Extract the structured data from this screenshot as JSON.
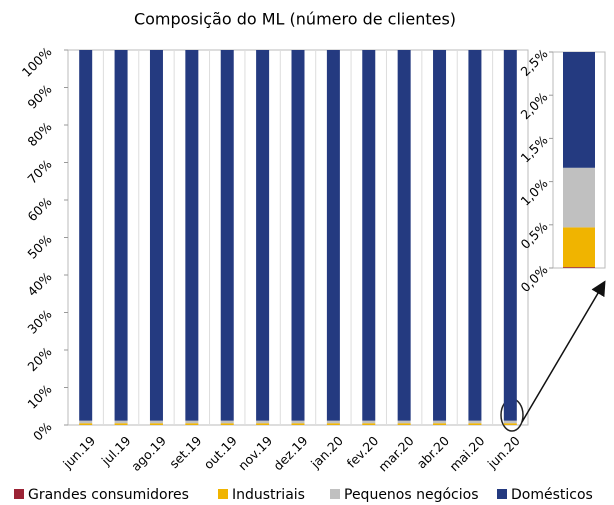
{
  "chart_data": {
    "type": "stacked-bar",
    "title": "Composição do ML (número de clientes)",
    "categories": [
      "jun.19",
      "jul.19",
      "ago.19",
      "set.19",
      "out.19",
      "nov.19",
      "dez.19",
      "jan.20",
      "fev.20",
      "mar.20",
      "abr.20",
      "mai.20",
      "jun.20"
    ],
    "series": [
      {
        "name": "Grandes consumidores",
        "color": "#9b2335",
        "values": [
          0.01,
          0.01,
          0.01,
          0.01,
          0.01,
          0.01,
          0.01,
          0.01,
          0.01,
          0.01,
          0.01,
          0.01,
          0.01
        ]
      },
      {
        "name": "Industriais",
        "color": "#f0b400",
        "values": [
          0.46,
          0.46,
          0.46,
          0.46,
          0.46,
          0.46,
          0.46,
          0.46,
          0.46,
          0.46,
          0.46,
          0.46,
          0.46
        ]
      },
      {
        "name": "Pequenos negócios",
        "color": "#c0c0c0",
        "values": [
          0.69,
          0.69,
          0.69,
          0.69,
          0.69,
          0.69,
          0.69,
          0.69,
          0.69,
          0.69,
          0.69,
          0.69,
          0.69
        ]
      },
      {
        "name": "Domésticos",
        "color": "#243a80",
        "values": [
          98.84,
          98.84,
          98.84,
          98.84,
          98.84,
          98.84,
          98.84,
          98.84,
          98.84,
          98.84,
          98.84,
          98.84,
          98.84
        ]
      }
    ],
    "ylim": [
      0,
      100
    ],
    "yticks": [
      {
        "value": 0,
        "label": "0%"
      },
      {
        "value": 10,
        "label": "10%"
      },
      {
        "value": 20,
        "label": "20%"
      },
      {
        "value": 30,
        "label": "30%"
      },
      {
        "value": 40,
        "label": "40%"
      },
      {
        "value": 50,
        "label": "50%"
      },
      {
        "value": 60,
        "label": "60%"
      },
      {
        "value": 70,
        "label": "70%"
      },
      {
        "value": 80,
        "label": "80%"
      },
      {
        "value": 90,
        "label": "90%"
      },
      {
        "value": 100,
        "label": "100%"
      }
    ],
    "legend": "bottom",
    "inset": {
      "ylim": [
        0,
        2.5
      ],
      "yticks": [
        {
          "value": 0,
          "label": "0,0%"
        },
        {
          "value": 0.5,
          "label": "0,5%"
        },
        {
          "value": 1,
          "label": "1,0%"
        },
        {
          "value": 1.5,
          "label": "1,5%"
        },
        {
          "value": 2,
          "label": "2,0%"
        },
        {
          "value": 2.5,
          "label": "2,5%"
        }
      ]
    }
  }
}
